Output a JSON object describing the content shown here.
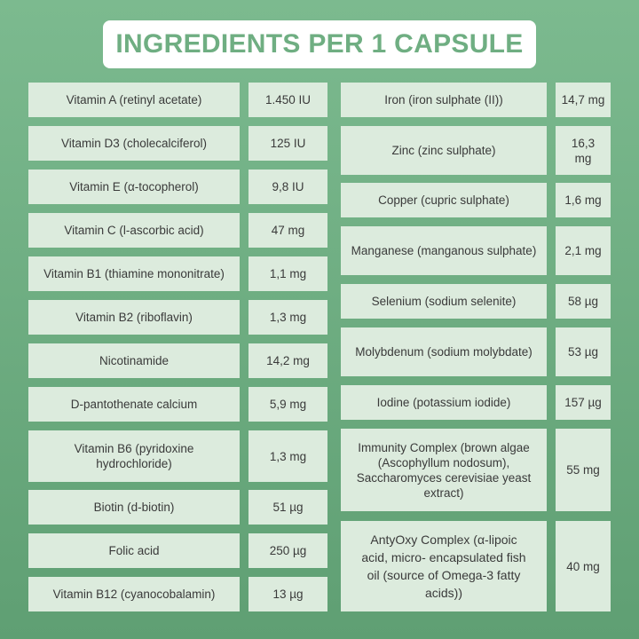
{
  "title": "INGREDIENTS PER 1 CAPSULE",
  "left_column": [
    {
      "name": "Vitamin A (retinyl acetate)",
      "amount": "1.450 IU"
    },
    {
      "name": "Vitamin D3 (cholecalciferol)",
      "amount": "125 IU"
    },
    {
      "name": "Vitamin E (α-tocopherol)",
      "amount": "9,8 IU"
    },
    {
      "name": "Vitamin C (l-ascorbic acid)",
      "amount": "47 mg"
    },
    {
      "name": "Vitamin B1 (thiamine mononitrate)",
      "amount": "1,1 mg"
    },
    {
      "name": "Vitamin B2 (riboflavin)",
      "amount": "1,3 mg"
    },
    {
      "name": "Nicotinamide",
      "amount": "14,2 mg"
    },
    {
      "name": "D-pantothenate calcium",
      "amount": "5,9 mg"
    },
    {
      "name": "Vitamin B6 (pyridoxine hydrochloride)",
      "amount": "1,3 mg"
    },
    {
      "name": "Biotin (d-biotin)",
      "amount": "51 µg"
    },
    {
      "name": "Folic acid",
      "amount": "250 µg"
    },
    {
      "name": "Vitamin B12 (cyanocobalamin)",
      "amount": "13 µg"
    }
  ],
  "right_column": [
    {
      "name": "Iron (iron sulphate (II))",
      "amount": "14,7 mg"
    },
    {
      "name": "Zinc (zinc sulphate)",
      "amount": "16,3 mg"
    },
    {
      "name": "Copper (cupric sulphate)",
      "amount": "1,6 mg"
    },
    {
      "name": "Manganese (manganous sulphate)",
      "amount": "2,1 mg"
    },
    {
      "name": "Selenium (sodium selenite)",
      "amount": "58 µg"
    },
    {
      "name": "Molybdenum (sodium molybdate)",
      "amount": "53 µg"
    },
    {
      "name": "Iodine (potassium iodide)",
      "amount": "157 µg"
    },
    {
      "name": "Immunity Complex (brown algae (Ascophyllum nodosum), Saccharomyces cerevisiae yeast extract)",
      "amount": "55 mg"
    },
    {
      "name": "AntyOxy Complex (α-lipoic acid, micro- encapsulated fish oil (source of Omega-3 fatty acids))",
      "amount": "40 mg"
    }
  ]
}
